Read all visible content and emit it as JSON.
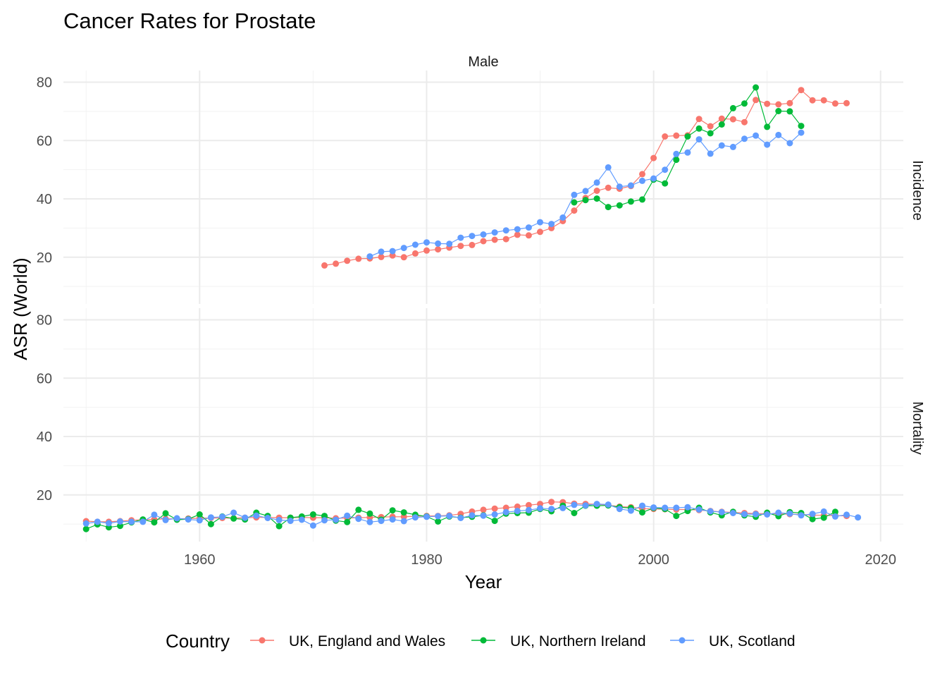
{
  "chart_data": {
    "type": "line",
    "title": "Cancer Rates for Prostate",
    "facet_column": "Male",
    "panels": [
      "Incidence",
      "Mortality"
    ],
    "xlabel": "Year",
    "ylabel": "ASR (World)",
    "xlim": [
      1948,
      2022
    ],
    "ylim": [
      4,
      84
    ],
    "x_ticks": [
      1960,
      1980,
      2000,
      2020
    ],
    "y_ticks": [
      20,
      40,
      60,
      80
    ],
    "grid": true,
    "legend": {
      "title": "Country",
      "position": "bottom",
      "entries": [
        "UK, England and Wales",
        "UK, Northern Ireland",
        "UK, Scotland"
      ]
    },
    "series": [
      {
        "name": "UK, England and Wales",
        "color": "#F8766D",
        "incidence": {
          "x": [
            1971,
            1972,
            1973,
            1974,
            1975,
            1976,
            1977,
            1978,
            1979,
            1980,
            1981,
            1982,
            1983,
            1984,
            1985,
            1986,
            1987,
            1988,
            1989,
            1990,
            1991,
            1992,
            1993,
            1994,
            1995,
            1996,
            1997,
            1998,
            1999,
            2000,
            2001,
            2002,
            2003,
            2004,
            2005,
            2006,
            2007,
            2008,
            2009,
            2010,
            2011,
            2012,
            2013,
            2014,
            2015,
            2016,
            2017
          ],
          "y": [
            17.2,
            17.8,
            18.8,
            19.5,
            19.6,
            20.1,
            20.6,
            20.0,
            21.3,
            22.3,
            22.7,
            23.3,
            23.9,
            24.2,
            25.5,
            26.0,
            26.2,
            27.7,
            27.5,
            28.7,
            30.0,
            32.4,
            36.0,
            40.3,
            42.8,
            43.8,
            43.5,
            44.4,
            48.5,
            54.0,
            61.4,
            61.7,
            61.8,
            67.4,
            64.9,
            67.5,
            67.3,
            66.3,
            73.9,
            72.6,
            72.4,
            72.8,
            77.3,
            73.8,
            73.8,
            72.7,
            72.8
          ]
        },
        "mortality": {
          "x": [
            1950,
            1951,
            1952,
            1953,
            1954,
            1955,
            1956,
            1957,
            1958,
            1959,
            1960,
            1961,
            1962,
            1963,
            1964,
            1965,
            1966,
            1967,
            1968,
            1969,
            1970,
            1971,
            1972,
            1973,
            1974,
            1975,
            1976,
            1977,
            1978,
            1979,
            1980,
            1981,
            1982,
            1983,
            1984,
            1985,
            1986,
            1987,
            1988,
            1989,
            1990,
            1991,
            1992,
            1993,
            1994,
            1995,
            1996,
            1997,
            1998,
            1999,
            2000,
            2001,
            2002,
            2003,
            2004,
            2005,
            2006,
            2007,
            2008,
            2009,
            2010,
            2011,
            2012,
            2013,
            2014,
            2015,
            2016,
            2017
          ],
          "y": [
            11.0,
            10.8,
            10.8,
            11.0,
            11.3,
            11.5,
            11.6,
            11.8,
            11.8,
            11.9,
            12.0,
            12.1,
            12.1,
            12.0,
            12.2,
            12.3,
            12.3,
            12.2,
            12.2,
            12.3,
            12.2,
            12.2,
            12.0,
            12.1,
            12.2,
            12.3,
            12.4,
            12.5,
            12.5,
            12.7,
            12.8,
            12.8,
            13.0,
            13.5,
            14.3,
            14.9,
            15.3,
            15.6,
            16.0,
            16.5,
            16.9,
            17.6,
            17.5,
            17.0,
            16.9,
            16.8,
            16.5,
            16.0,
            15.8,
            15.3,
            15.2,
            15.1,
            15.0,
            15.0,
            14.8,
            14.5,
            14.2,
            14.0,
            13.8,
            13.6,
            13.6,
            13.5,
            13.4,
            13.3,
            13.1,
            13.0,
            12.9,
            12.8
          ]
        }
      },
      {
        "name": "UK, Northern Ireland",
        "color": "#00BA38",
        "incidence": {
          "x": [
            1993,
            1994,
            1995,
            1996,
            1997,
            1998,
            1999,
            2000,
            2001,
            2002,
            2003,
            2004,
            2005,
            2006,
            2007,
            2008,
            2009,
            2010,
            2011,
            2012,
            2013
          ],
          "y": [
            38.8,
            39.6,
            40.1,
            37.2,
            37.8,
            39.1,
            39.8,
            46.6,
            45.3,
            53.4,
            61.4,
            64.1,
            62.5,
            65.5,
            71.1,
            72.7,
            78.2,
            64.7,
            70.1,
            70.0,
            65.0
          ]
        },
        "mortality": {
          "x": [
            1950,
            1951,
            1952,
            1953,
            1954,
            1955,
            1956,
            1957,
            1958,
            1959,
            1960,
            1961,
            1962,
            1963,
            1964,
            1965,
            1966,
            1967,
            1968,
            1969,
            1970,
            1971,
            1972,
            1973,
            1974,
            1975,
            1976,
            1977,
            1978,
            1979,
            1980,
            1981,
            1982,
            1983,
            1984,
            1985,
            1986,
            1987,
            1988,
            1989,
            1990,
            1991,
            1992,
            1993,
            1994,
            1995,
            1996,
            1997,
            1998,
            1999,
            2000,
            2001,
            2002,
            2003,
            2004,
            2005,
            2006,
            2007,
            2008,
            2009,
            2010,
            2011,
            2012,
            2013,
            2014,
            2015,
            2016
          ],
          "y": [
            8.3,
            9.9,
            8.9,
            9.4,
            10.6,
            11.6,
            10.6,
            13.7,
            11.5,
            11.7,
            13.3,
            10.0,
            12.6,
            11.9,
            11.6,
            13.9,
            12.8,
            9.3,
            12.2,
            12.6,
            13.3,
            12.8,
            11.2,
            10.7,
            14.9,
            13.6,
            11.5,
            14.7,
            14.0,
            13.2,
            12.6,
            10.9,
            12.6,
            12.2,
            12.5,
            13.0,
            11.1,
            13.6,
            13.8,
            13.9,
            15.2,
            14.4,
            16.3,
            13.8,
            16.3,
            16.3,
            16.4,
            15.8,
            15.5,
            14.0,
            15.5,
            15.2,
            12.8,
            14.5,
            15.6,
            14.0,
            13.0,
            14.2,
            13.0,
            12.5,
            13.9,
            12.7,
            14.1,
            13.8,
            11.7,
            12.2,
            14.2
          ]
        }
      },
      {
        "name": "UK, Scotland",
        "color": "#619CFF",
        "incidence": {
          "x": [
            1975,
            1976,
            1977,
            1978,
            1979,
            1980,
            1981,
            1982,
            1983,
            1984,
            1985,
            1986,
            1987,
            1988,
            1989,
            1990,
            1991,
            1992,
            1993,
            1994,
            1995,
            1996,
            1997,
            1998,
            1999,
            2000,
            2001,
            2002,
            2003,
            2004,
            2005,
            2006,
            2007,
            2008,
            2009,
            2010,
            2011,
            2012,
            2013
          ],
          "y": [
            20.3,
            21.9,
            22.1,
            23.2,
            24.3,
            25.1,
            24.7,
            24.6,
            26.7,
            27.3,
            27.8,
            28.5,
            29.2,
            29.6,
            30.2,
            32.0,
            31.4,
            33.6,
            41.4,
            42.7,
            45.6,
            50.8,
            44.2,
            44.6,
            46.2,
            47.0,
            50.0,
            55.4,
            55.9,
            60.4,
            55.5,
            58.3,
            57.8,
            60.6,
            61.7,
            58.6,
            61.9,
            59.1,
            62.7
          ]
        },
        "mortality": {
          "x": [
            1950,
            1951,
            1952,
            1953,
            1954,
            1955,
            1956,
            1957,
            1958,
            1959,
            1960,
            1961,
            1962,
            1963,
            1964,
            1965,
            1966,
            1967,
            1968,
            1969,
            1970,
            1971,
            1972,
            1973,
            1974,
            1975,
            1976,
            1977,
            1978,
            1979,
            1980,
            1981,
            1982,
            1983,
            1984,
            1985,
            1986,
            1987,
            1988,
            1989,
            1990,
            1991,
            1992,
            1993,
            1994,
            1995,
            1996,
            1997,
            1998,
            1999,
            2000,
            2001,
            2002,
            2003,
            2004,
            2005,
            2006,
            2007,
            2008,
            2009,
            2010,
            2011,
            2012,
            2013,
            2014,
            2015,
            2016,
            2017,
            2018
          ],
          "y": [
            10.2,
            10.8,
            10.3,
            10.9,
            10.8,
            10.8,
            13.2,
            11.4,
            12.0,
            11.6,
            11.3,
            12.3,
            12.5,
            13.9,
            12.2,
            12.9,
            12.1,
            11.4,
            11.1,
            11.5,
            9.5,
            11.3,
            11.5,
            12.9,
            11.8,
            10.7,
            11.1,
            11.6,
            11.0,
            12.3,
            12.5,
            12.7,
            12.8,
            12.1,
            13.0,
            12.9,
            13.3,
            14.1,
            14.5,
            14.8,
            15.4,
            15.2,
            15.5,
            16.6,
            16.4,
            16.9,
            16.7,
            15.2,
            14.6,
            16.3,
            15.7,
            15.6,
            15.6,
            15.8,
            15.0,
            14.4,
            14.1,
            13.8,
            13.4,
            13.4,
            13.3,
            13.9,
            13.6,
            13.0,
            13.5,
            14.3,
            12.6,
            13.2,
            12.3
          ]
        }
      }
    ]
  }
}
